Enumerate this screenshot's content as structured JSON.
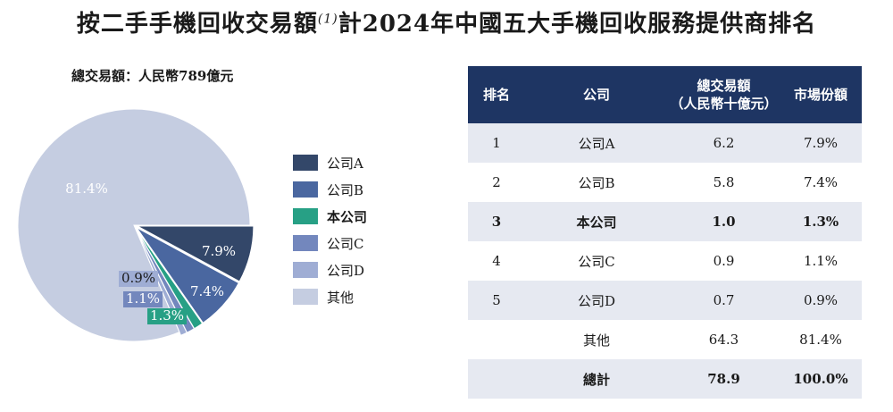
{
  "title": {
    "prefix": "按二手手機回收交易額",
    "note": "(1)",
    "middle": "計",
    "year": "2024",
    "suffix": "年中國五大手機回收服務提供商排名"
  },
  "total_label": {
    "prefix": "總交易額：人民幣",
    "value": "789",
    "suffix": "億元"
  },
  "chart_data": [
    {
      "type": "pie",
      "slices": [
        {
          "name": "公司A",
          "value": 7.9,
          "label": "7.9%",
          "color": "#334769"
        },
        {
          "name": "公司B",
          "value": 7.4,
          "label": "7.4%",
          "color": "#4a67a0"
        },
        {
          "name": "本公司",
          "value": 1.3,
          "label": "1.3%",
          "color": "#27a085"
        },
        {
          "name": "公司C",
          "value": 1.1,
          "label": "1.1%",
          "color": "#7387bd"
        },
        {
          "name": "公司D",
          "value": 0.9,
          "label": "0.9%",
          "color": "#9fadd4"
        },
        {
          "name": "其他",
          "value": 81.4,
          "label": "81.4%",
          "color": "#c5cde1"
        }
      ],
      "legend_position": "right"
    },
    {
      "type": "table",
      "columns": [
        "排名",
        "公司",
        "總交易額\n（人民幣十億元）",
        "市場份額"
      ],
      "rows": [
        [
          "1",
          "公司A",
          "6.2",
          "7.9%"
        ],
        [
          "2",
          "公司B",
          "5.8",
          "7.4%"
        ],
        [
          "3",
          "本公司",
          "1.0",
          "1.3%"
        ],
        [
          "4",
          "公司C",
          "0.9",
          "1.1%"
        ],
        [
          "5",
          "公司D",
          "0.7",
          "0.9%"
        ],
        [
          "",
          "其他",
          "64.3",
          "81.4%"
        ],
        [
          "",
          "總計",
          "78.9",
          "100.0%"
        ]
      ]
    }
  ],
  "table": {
    "header": {
      "rank": "排名",
      "company": "公司",
      "amount_line1": "總交易額",
      "amount_line2": "（人民幣十億元）",
      "share": "市場份額"
    },
    "rows": [
      {
        "rank": "1",
        "company": "公司A",
        "amount": "6.2",
        "share": "7.9%",
        "bold": false
      },
      {
        "rank": "2",
        "company": "公司B",
        "amount": "5.8",
        "share": "7.4%",
        "bold": false
      },
      {
        "rank": "3",
        "company": "本公司",
        "amount": "1.0",
        "share": "1.3%",
        "bold": true
      },
      {
        "rank": "4",
        "company": "公司C",
        "amount": "0.9",
        "share": "1.1%",
        "bold": false
      },
      {
        "rank": "5",
        "company": "公司D",
        "amount": "0.7",
        "share": "0.9%",
        "bold": false
      },
      {
        "rank": "",
        "company": "其他",
        "amount": "64.3",
        "share": "81.4%",
        "bold": false
      },
      {
        "rank": "",
        "company": "總計",
        "amount": "78.9",
        "share": "100.0%",
        "bold": true
      }
    ]
  }
}
